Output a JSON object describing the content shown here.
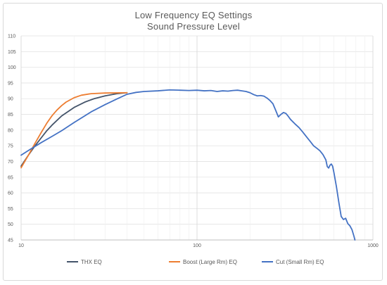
{
  "chart_data": {
    "type": "line",
    "title": "Low Frequency EQ Settings",
    "subtitle": "Sound Pressure Level",
    "x_scale": "log",
    "xlim": [
      10,
      1000
    ],
    "ylim": [
      45,
      110
    ],
    "x_ticks": [
      "10",
      "100",
      "1000"
    ],
    "y_ticks": [
      "45",
      "50",
      "55",
      "60",
      "65",
      "70",
      "75",
      "80",
      "85",
      "90",
      "95",
      "100",
      "105",
      "110"
    ],
    "grid": true,
    "legend_position": "bottom",
    "series": [
      {
        "name": "THX EQ",
        "color": "#44546a",
        "points": [
          [
            10,
            68.5
          ],
          [
            11,
            72
          ],
          [
            12,
            75
          ],
          [
            13,
            77.5
          ],
          [
            14,
            79.8
          ],
          [
            15,
            81.6
          ],
          [
            17,
            84.5
          ],
          [
            20,
            87.2
          ],
          [
            23,
            88.9
          ],
          [
            26,
            90
          ],
          [
            30,
            90.9
          ],
          [
            35,
            91.6
          ],
          [
            40,
            91.9
          ]
        ]
      },
      {
        "name": "Boost (Large Rm) EQ",
        "color": "#ed7d31",
        "points": [
          [
            10,
            68
          ],
          [
            11,
            72
          ],
          [
            12,
            75.8
          ],
          [
            13,
            79.2
          ],
          [
            14,
            82.2
          ],
          [
            15,
            84.6
          ],
          [
            16,
            86.4
          ],
          [
            17,
            87.8
          ],
          [
            18,
            88.9
          ],
          [
            20,
            90.3
          ],
          [
            22,
            91.1
          ],
          [
            25,
            91.6
          ],
          [
            30,
            91.8
          ],
          [
            40,
            91.9
          ]
        ]
      },
      {
        "name": "Cut (Small Rm) EQ",
        "color": "#4472c4",
        "points": [
          [
            10,
            72
          ],
          [
            11,
            73.5
          ],
          [
            12,
            74.8
          ],
          [
            13,
            76
          ],
          [
            15,
            78
          ],
          [
            17,
            79.8
          ],
          [
            20,
            82.4
          ],
          [
            25,
            85.8
          ],
          [
            30,
            88.1
          ],
          [
            35,
            89.9
          ],
          [
            40,
            91.4
          ],
          [
            45,
            92
          ],
          [
            50,
            92.3
          ],
          [
            60,
            92.5
          ],
          [
            70,
            92.8
          ],
          [
            80,
            92.7
          ],
          [
            90,
            92.6
          ],
          [
            100,
            92.7
          ],
          [
            110,
            92.5
          ],
          [
            120,
            92.6
          ],
          [
            130,
            92.3
          ],
          [
            140,
            92.5
          ],
          [
            150,
            92.4
          ],
          [
            160,
            92.6
          ],
          [
            170,
            92.7
          ],
          [
            180,
            92.5
          ],
          [
            190,
            92.3
          ],
          [
            200,
            91.9
          ],
          [
            210,
            91.3
          ],
          [
            220,
            90.9
          ],
          [
            230,
            91
          ],
          [
            240,
            90.8
          ],
          [
            250,
            90.2
          ],
          [
            260,
            89.4
          ],
          [
            270,
            88.4
          ],
          [
            280,
            86.3
          ],
          [
            290,
            84.2
          ],
          [
            300,
            85
          ],
          [
            310,
            85.6
          ],
          [
            320,
            85.3
          ],
          [
            330,
            84.4
          ],
          [
            340,
            83.4
          ],
          [
            360,
            82
          ],
          [
            380,
            80.8
          ],
          [
            400,
            79.3
          ],
          [
            420,
            77.8
          ],
          [
            440,
            76.4
          ],
          [
            460,
            75
          ],
          [
            480,
            74.2
          ],
          [
            500,
            73.4
          ],
          [
            520,
            72.2
          ],
          [
            540,
            70.5
          ],
          [
            550,
            68.4
          ],
          [
            560,
            67.9
          ],
          [
            570,
            68.8
          ],
          [
            580,
            69.2
          ],
          [
            590,
            68.5
          ],
          [
            600,
            66.5
          ],
          [
            620,
            62
          ],
          [
            640,
            57
          ],
          [
            660,
            52.5
          ],
          [
            680,
            51.5
          ],
          [
            700,
            51.9
          ],
          [
            720,
            50.2
          ],
          [
            740,
            49.5
          ],
          [
            760,
            48.3
          ],
          [
            780,
            46.2
          ],
          [
            790,
            45
          ]
        ]
      }
    ]
  }
}
